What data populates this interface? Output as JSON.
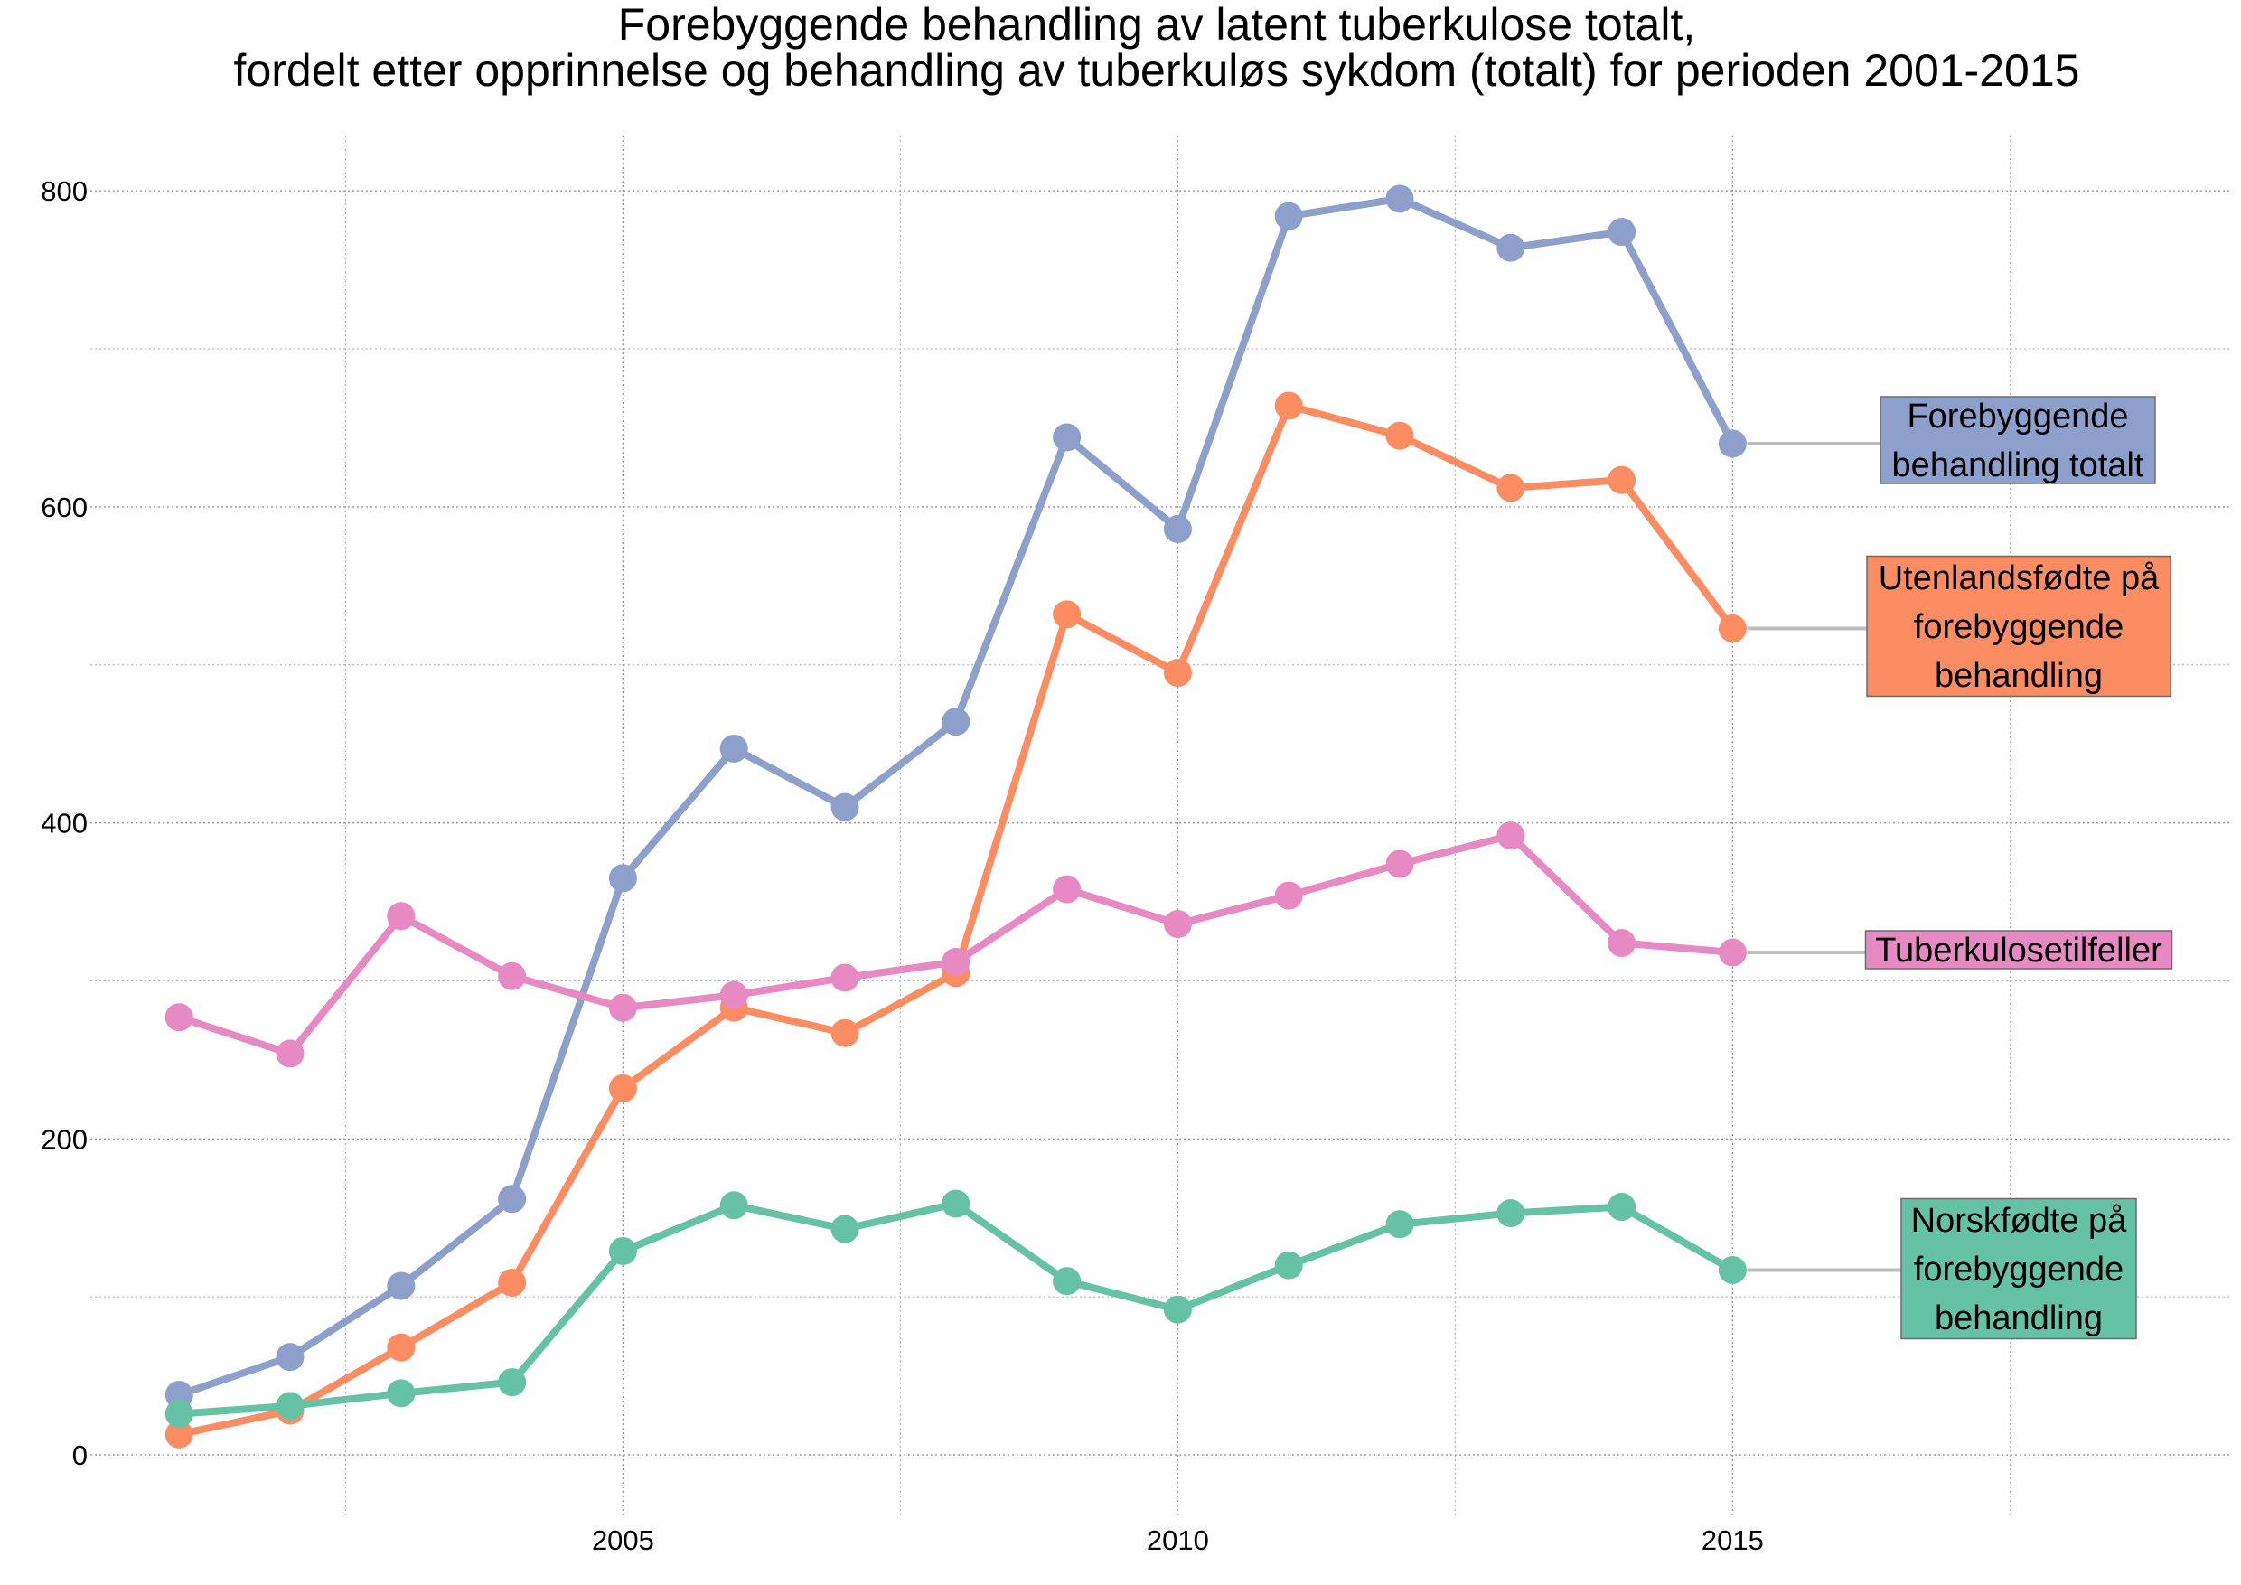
{
  "chart_data": {
    "type": "line",
    "title": [
      "Forebyggende behandling av latent tuberkulose totalt,",
      "fordelt etter opprinnelse og behandling av tuberkuløs sykdom (totalt) for perioden 2001-2015"
    ],
    "xlabel": "",
    "ylabel": "",
    "x": [
      2001,
      2002,
      2003,
      2004,
      2005,
      2006,
      2007,
      2008,
      2009,
      2010,
      2011,
      2012,
      2013,
      2014,
      2015
    ],
    "xlim": [
      2000.2,
      2019.5
    ],
    "ylim": [
      -40,
      835
    ],
    "x_ticks": [
      2005,
      2010,
      2015
    ],
    "x_tick_labels": [
      "2005",
      "2010",
      "2015"
    ],
    "x_minor_ticks": [
      2002.5,
      2007.5,
      2012.5,
      2017.5
    ],
    "y_ticks": [
      0,
      200,
      400,
      600,
      800
    ],
    "y_tick_labels": [
      "0",
      "200",
      "400",
      "600",
      "800"
    ],
    "y_minor_ticks": [
      100,
      300,
      500,
      700
    ],
    "grid": true,
    "legend": "direct labels at right of lines",
    "series": [
      {
        "name": "Forebyggende behandling totalt",
        "label_lines": [
          "Forebyggende",
          "behandling totalt"
        ],
        "color": "#8da0cb",
        "values": [
          38,
          62,
          107,
          162,
          365,
          447,
          410,
          464,
          644,
          586,
          784,
          795,
          764,
          774,
          640
        ]
      },
      {
        "name": "Utenlandsfødte på forebyggende behandling",
        "label_lines": [
          "Utenlandsfødte på",
          "forebyggende",
          "behandling"
        ],
        "color": "#fc8d62",
        "values": [
          13,
          28,
          68,
          109,
          232,
          283,
          267,
          305,
          532,
          495,
          664,
          645,
          612,
          617,
          523
        ]
      },
      {
        "name": "Tuberkulosetilfeller",
        "label_lines": [
          "Tuberkulosetilfeller"
        ],
        "color": "#e78ac3",
        "values": [
          277,
          254,
          341,
          303,
          283,
          291,
          302,
          312,
          358,
          336,
          354,
          374,
          392,
          324,
          318
        ]
      },
      {
        "name": "Norskfødte på forebyggende behandling",
        "label_lines": [
          "Norskfødte på",
          "forebyggende",
          "behandling"
        ],
        "color": "#66c2a5",
        "values": [
          26,
          31,
          39,
          46,
          129,
          158,
          143,
          159,
          110,
          92,
          120,
          146,
          153,
          157,
          117
        ]
      }
    ]
  }
}
